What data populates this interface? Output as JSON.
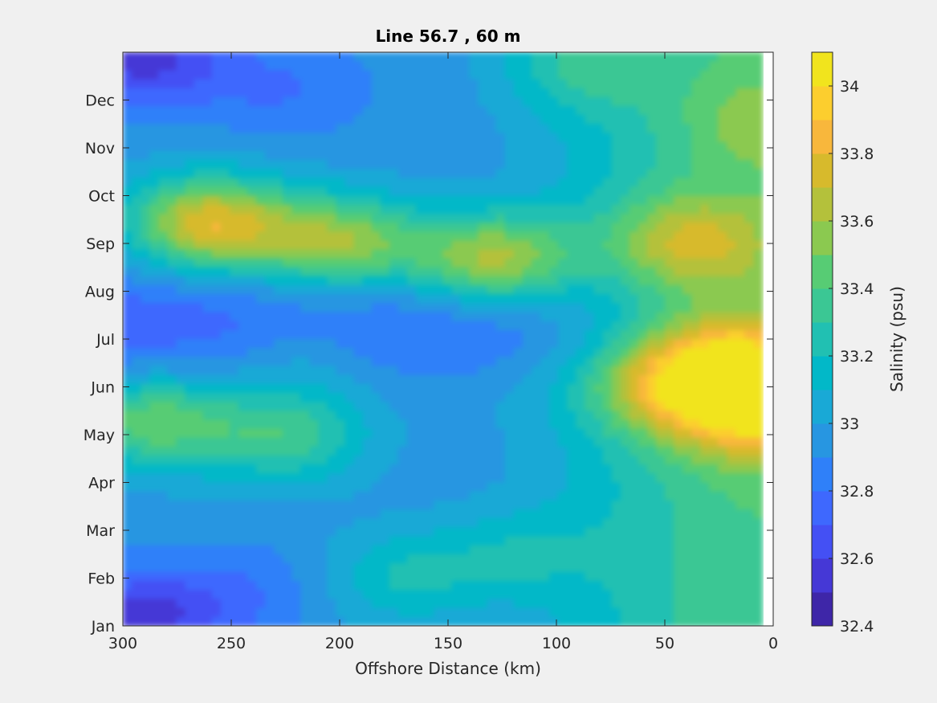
{
  "chart_data": {
    "type": "heatmap",
    "subtype": "filled-contour",
    "title": "Line 56.7 , 60 m",
    "xlabel": "Offshore Distance (km)",
    "ylabel": "",
    "xlim": [
      300,
      0
    ],
    "x_reversed": true,
    "x_ticks": [
      300,
      250,
      200,
      150,
      100,
      50,
      0
    ],
    "x_tick_labels": [
      "300",
      "250",
      "200",
      "150",
      "100",
      "50",
      "0"
    ],
    "y_ticks": [
      1,
      2,
      3,
      4,
      5,
      6,
      7,
      8,
      9,
      10,
      11,
      12
    ],
    "y_tick_labels": [
      "Jan",
      "Feb",
      "Mar",
      "Apr",
      "May",
      "Jun",
      "Jul",
      "Aug",
      "Sep",
      "Oct",
      "Nov",
      "Dec"
    ],
    "ylim": [
      1,
      13
    ],
    "data_x_range": [
      300,
      5
    ],
    "colorbar": {
      "label": "Salinity (psu)",
      "limits": [
        32.4,
        34.1
      ],
      "ticks": [
        32.4,
        32.6,
        32.8,
        33,
        33.2,
        33.4,
        33.6,
        33.8,
        34
      ],
      "tick_labels": [
        "32.4",
        "32.6",
        "32.8",
        "33",
        "33.2",
        "33.4",
        "33.6",
        "33.8",
        "34"
      ],
      "levels": [
        32.4,
        32.5,
        32.6,
        32.7,
        32.8,
        32.9,
        33.0,
        33.1,
        33.2,
        33.3,
        33.4,
        33.5,
        33.6,
        33.7,
        33.8,
        33.9,
        34.0,
        34.1
      ],
      "colors": [
        "#3e26a8",
        "#4538d6",
        "#4450f4",
        "#3e68fe",
        "#2f80f9",
        "#2796e1",
        "#19a9d6",
        "#02b8c8",
        "#21c0b2",
        "#3bc794",
        "#57cc74",
        "#8bc950",
        "#b4c13b",
        "#d7ba2c",
        "#f8b73c",
        "#fcce2e",
        "#f1e41d"
      ]
    },
    "features": [
      {
        "x": 5,
        "y": 5.5,
        "value": 34.05
      },
      {
        "x": 18,
        "y": 6.5,
        "value": 33.95
      },
      {
        "x": 50,
        "y": 6.0,
        "value": 33.75
      },
      {
        "x": 40,
        "y": 9.0,
        "value": 33.75
      },
      {
        "x": 0,
        "y": 11.5,
        "value": 33.6
      },
      {
        "x": 260,
        "y": 9.4,
        "value": 33.75
      },
      {
        "x": 200,
        "y": 9.0,
        "value": 33.55
      },
      {
        "x": 130,
        "y": 8.65,
        "value": 33.6
      },
      {
        "x": 135,
        "y": 6.0,
        "value": 32.95
      },
      {
        "x": 215,
        "y": 6.6,
        "value": 32.95
      },
      {
        "x": 287,
        "y": 5.3,
        "value": 33.45
      },
      {
        "x": 225,
        "y": 5.0,
        "value": 33.35
      },
      {
        "x": 245,
        "y": 1.7,
        "value": 32.8
      },
      {
        "x": 295,
        "y": 1.1,
        "value": 32.55
      },
      {
        "x": 290,
        "y": 12.9,
        "value": 32.55
      },
      {
        "x": 225,
        "y": 12.2,
        "value": 32.8
      },
      {
        "x": 170,
        "y": 2.0,
        "value": 33.2
      },
      {
        "x": 120,
        "y": 2.5,
        "value": 33.2
      },
      {
        "x": 90,
        "y": 12.7,
        "value": 33.35
      }
    ]
  }
}
